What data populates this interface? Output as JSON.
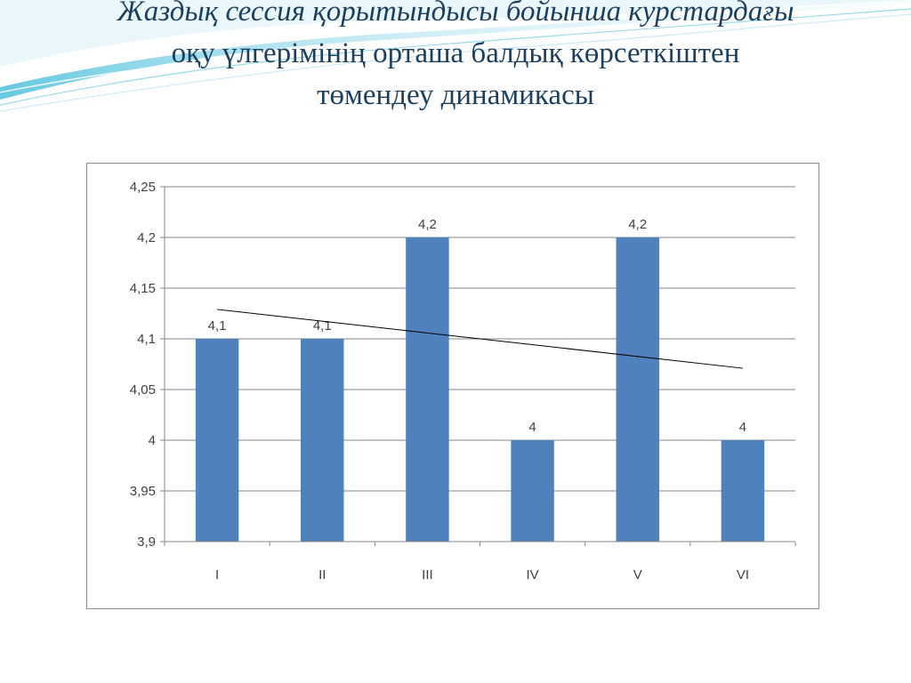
{
  "slide": {
    "title_lines": [
      "Жаздық сессия қорытындысы бойынша курстардағы",
      "оқу үлгерімінің орташа балдық көрсеткіштен",
      "төмендеу динамикасы"
    ]
  },
  "chart_data": {
    "type": "bar",
    "title": "",
    "xlabel": "",
    "ylabel": "",
    "categories": [
      "I",
      "II",
      "III",
      "IV",
      "V",
      "VI"
    ],
    "values": [
      4.1,
      4.1,
      4.2,
      4.0,
      4.2,
      4.0
    ],
    "value_labels": [
      "4,1",
      "4,1",
      "4,2",
      "4",
      "4,2",
      "4"
    ],
    "ylim": [
      3.9,
      4.25
    ],
    "yticks": [
      3.9,
      3.95,
      4.0,
      4.05,
      4.1,
      4.15,
      4.2,
      4.25
    ],
    "ytick_labels": [
      "3,9",
      "3,95",
      "4",
      "4,05",
      "4,1",
      "4,15",
      "4,2",
      "4,25"
    ],
    "grid": true,
    "legend": "none",
    "trendline": {
      "type": "linear",
      "start": 4.129,
      "end": 4.071
    },
    "colors": {
      "bar": "#4f81bd",
      "grid": "#868686",
      "trendline": "#000000",
      "text": "#404040"
    }
  }
}
